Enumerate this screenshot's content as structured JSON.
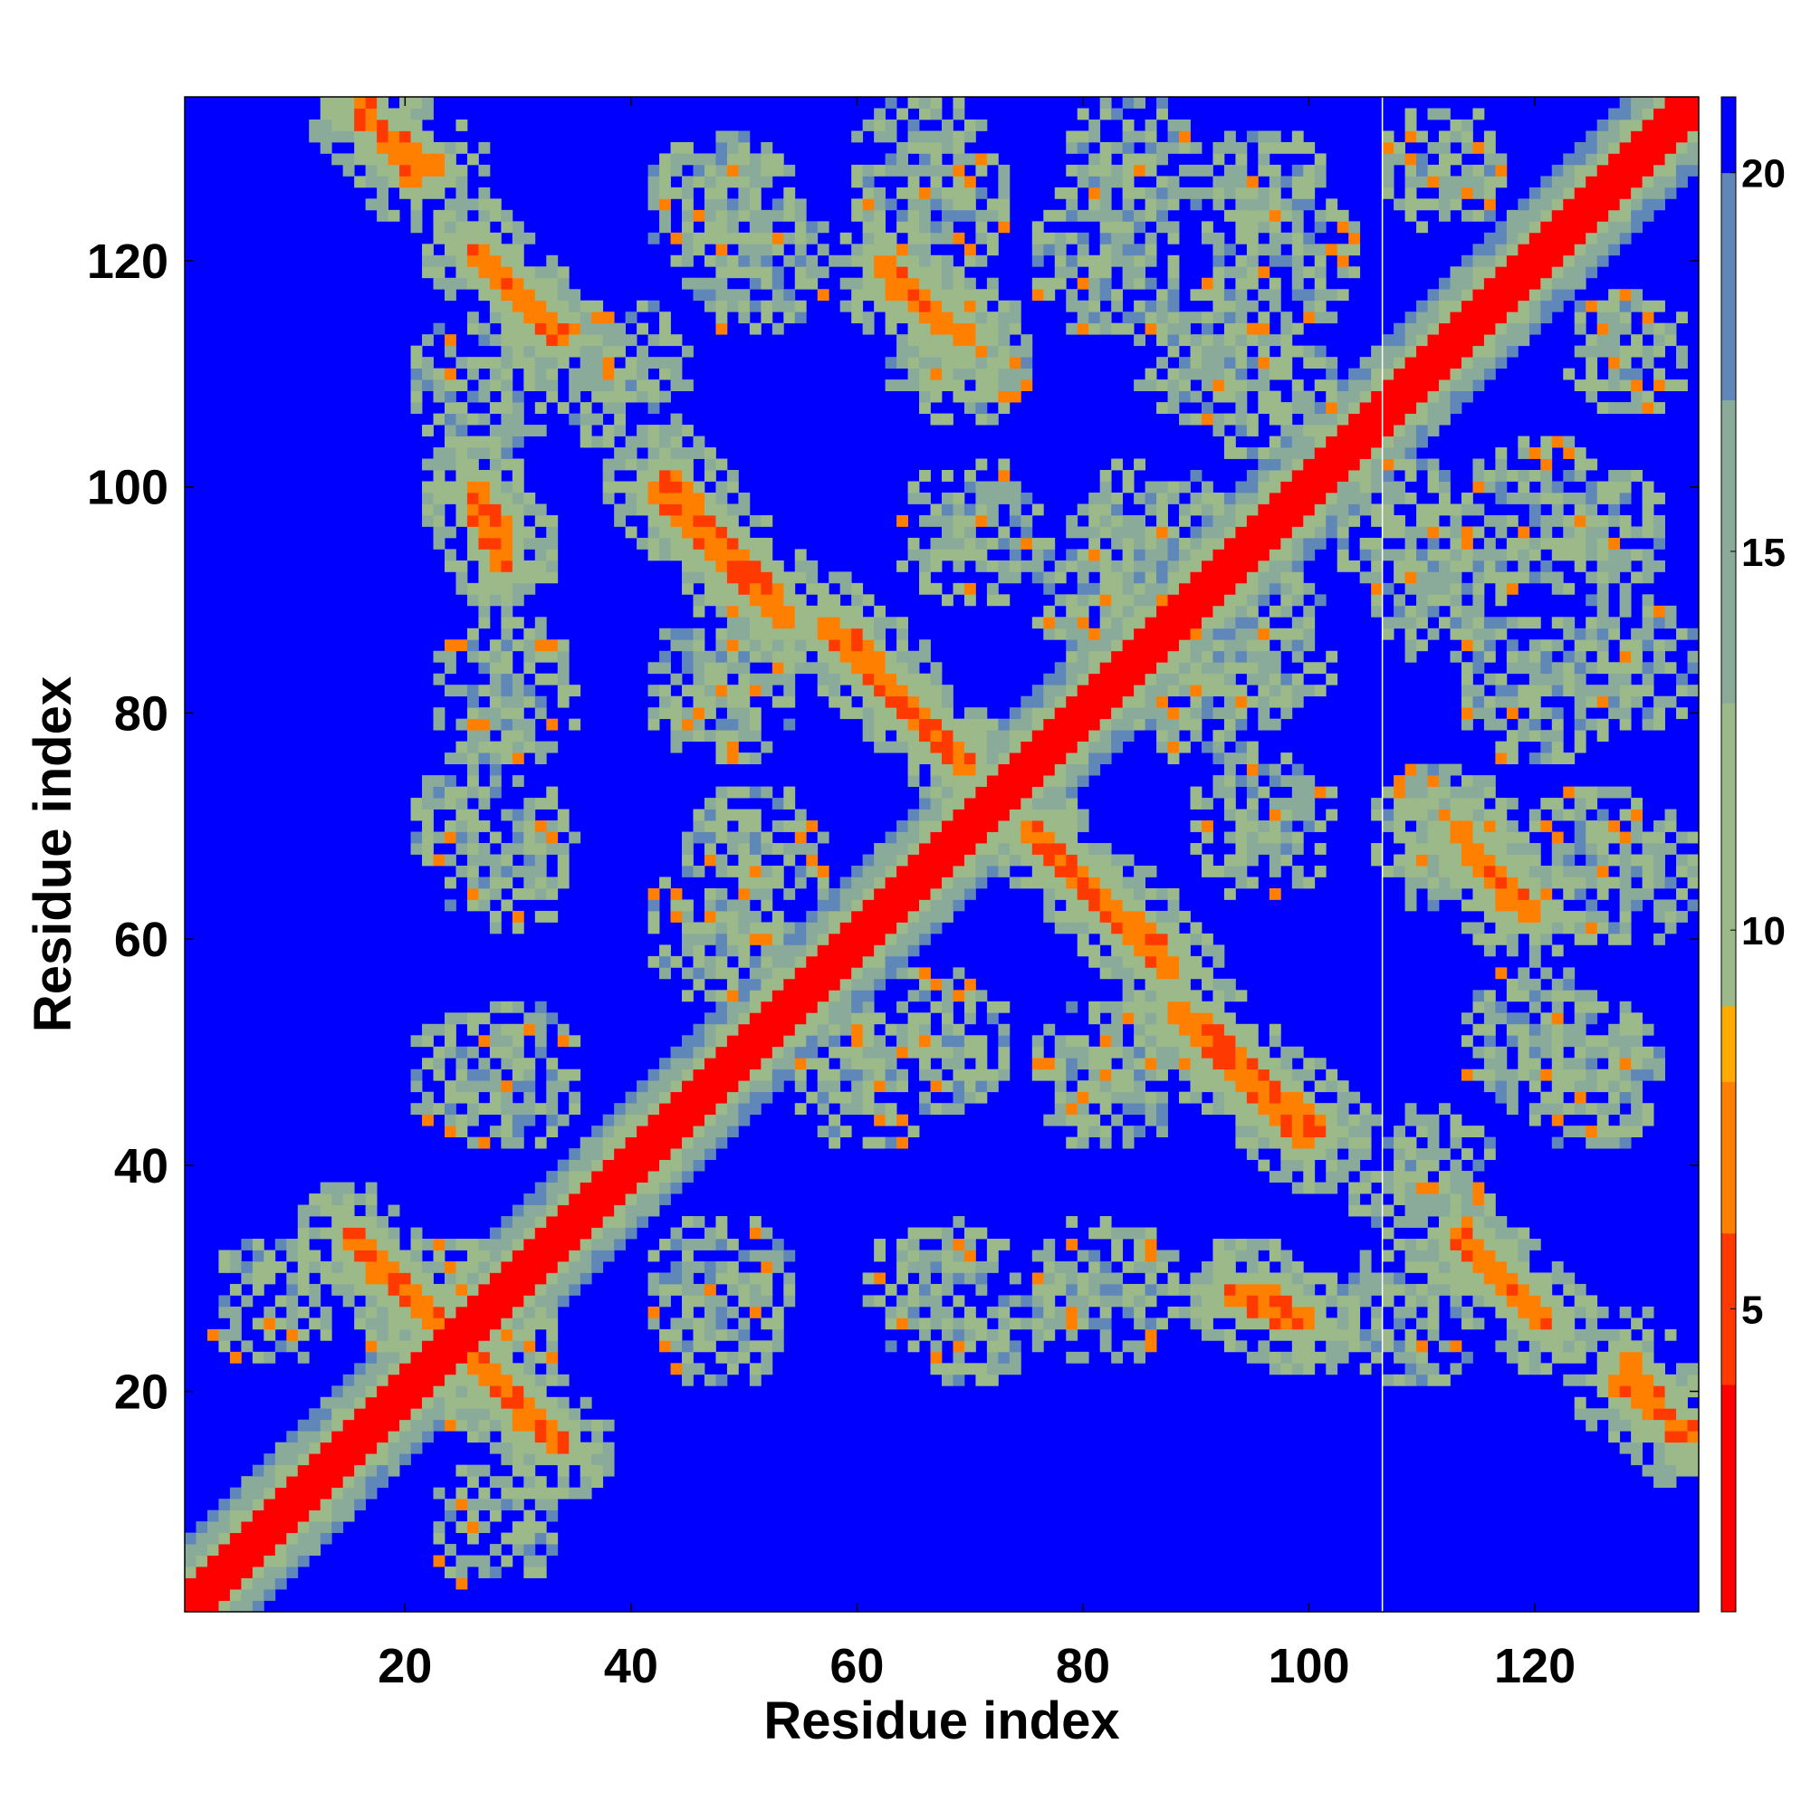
{
  "chart_data": {
    "type": "heatmap",
    "title": "",
    "xlabel": "Residue index",
    "ylabel": "Residue index",
    "n_residues": 134,
    "xlim": [
      1,
      134
    ],
    "ylim": [
      1,
      134
    ],
    "x_ticks": [
      20,
      40,
      60,
      80,
      100,
      120
    ],
    "x_tick_labels": [
      "20",
      "40",
      "60",
      "80",
      "100",
      "120"
    ],
    "y_ticks": [
      20,
      40,
      60,
      80,
      100,
      120
    ],
    "y_tick_labels": [
      "20",
      "40",
      "60",
      "80",
      "100",
      "120"
    ],
    "colorbar": {
      "min": 1,
      "max": 21,
      "ticks": [
        5,
        10,
        15,
        20
      ],
      "tick_labels": [
        "5",
        "10",
        "15",
        "20"
      ],
      "color_stops": [
        {
          "value": 1,
          "color": "#ff0000"
        },
        {
          "value": 4,
          "color": "#ff3a00"
        },
        {
          "value": 6,
          "color": "#ff8000"
        },
        {
          "value": 8,
          "color": "#ffaa00"
        },
        {
          "value": 9,
          "color": "#9cb98a"
        },
        {
          "value": 13,
          "color": "#8aab9a"
        },
        {
          "value": 17,
          "color": "#5f87b8"
        },
        {
          "value": 20,
          "color": "#0000ff"
        },
        {
          "value": 21,
          "color": "#0000ff"
        }
      ]
    },
    "matrix": "symmetric residue-residue distance map (Angstrom); red diagonal band, orange contact streaks, green/grey-blue halos, blue far distances",
    "features": {
      "diagonal_halfwidth": 2.5,
      "halo_width": 4,
      "separator_line_x": 107,
      "contact_segments": [
        {
          "x0": 15,
          "y0": 34,
          "x1": 24,
          "y1": 25
        },
        {
          "x0": 26,
          "y0": 23,
          "x1": 34,
          "y1": 15
        },
        {
          "x0": 26,
          "y0": 121,
          "x1": 34,
          "y1": 113
        },
        {
          "x0": 26,
          "y0": 100,
          "x1": 29,
          "y1": 96
        },
        {
          "x0": 16,
          "y0": 134,
          "x1": 21,
          "y1": 127
        },
        {
          "x0": 43,
          "y0": 101,
          "x1": 53,
          "y1": 90
        },
        {
          "x0": 59,
          "y0": 87,
          "x1": 70,
          "y1": 75
        },
        {
          "x0": 62,
          "y0": 120,
          "x1": 68,
          "y1": 114
        },
        {
          "x0": 75,
          "y0": 70,
          "x1": 88,
          "y1": 57
        },
        {
          "x0": 88,
          "y0": 54,
          "x1": 100,
          "y1": 42
        },
        {
          "x0": 93,
          "y0": 29,
          "x1": 99,
          "y1": 26
        },
        {
          "x0": 113,
          "y0": 34,
          "x1": 121,
          "y1": 26
        },
        {
          "x0": 113,
          "y0": 70,
          "x1": 118,
          "y1": 63
        },
        {
          "x0": 128,
          "y0": 23,
          "x1": 133,
          "y1": 16
        }
      ],
      "blob_regions": [
        {
          "x": 22,
          "y": 28,
          "r": 7
        },
        {
          "x": 27,
          "y": 109,
          "r": 7
        },
        {
          "x": 27,
          "y": 70,
          "r": 7
        },
        {
          "x": 27,
          "y": 48,
          "r": 7
        },
        {
          "x": 28,
          "y": 8,
          "r": 6
        },
        {
          "x": 48,
          "y": 29,
          "r": 7
        },
        {
          "x": 48,
          "y": 61,
          "r": 7
        },
        {
          "x": 48,
          "y": 84,
          "r": 7
        },
        {
          "x": 48,
          "y": 125,
          "r": 7
        },
        {
          "x": 67,
          "y": 29,
          "r": 7
        },
        {
          "x": 67,
          "y": 51,
          "r": 7
        },
        {
          "x": 67,
          "y": 125,
          "r": 7
        },
        {
          "x": 82,
          "y": 29,
          "r": 7
        },
        {
          "x": 82,
          "y": 48,
          "r": 7
        },
        {
          "x": 82,
          "y": 91,
          "r": 7
        },
        {
          "x": 82,
          "y": 120,
          "r": 7
        },
        {
          "x": 96,
          "y": 109,
          "r": 7
        },
        {
          "x": 96,
          "y": 125,
          "r": 7
        },
        {
          "x": 96,
          "y": 70,
          "r": 7
        },
        {
          "x": 96,
          "y": 86,
          "r": 7
        },
        {
          "x": 110,
          "y": 39,
          "r": 7
        },
        {
          "x": 112,
          "y": 69,
          "r": 7
        },
        {
          "x": 112,
          "y": 91,
          "r": 7
        },
        {
          "x": 120,
          "y": 51,
          "r": 7
        },
        {
          "x": 120,
          "y": 82,
          "r": 7
        },
        {
          "x": 120,
          "y": 98,
          "r": 7
        },
        {
          "x": 128,
          "y": 66,
          "r": 7
        },
        {
          "x": 128,
          "y": 84,
          "r": 7
        },
        {
          "x": 128,
          "y": 112,
          "r": 6
        }
      ],
      "noise_seed": 7
    }
  }
}
